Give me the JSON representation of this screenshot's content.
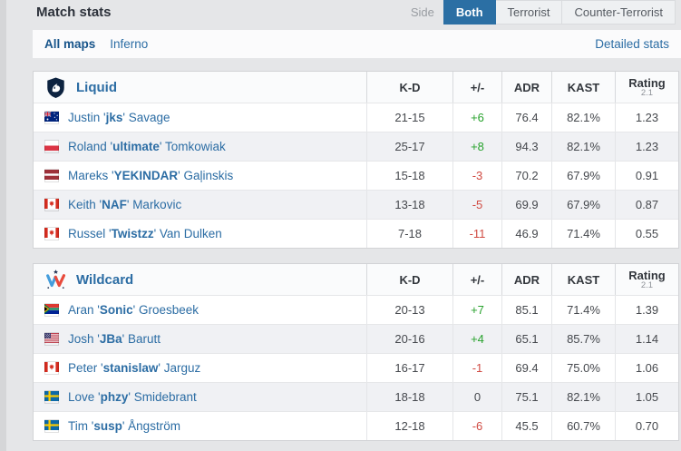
{
  "header": {
    "title": "Match stats",
    "side_label": "Side",
    "side_tabs": [
      {
        "label": "Both",
        "active": true
      },
      {
        "label": "Terrorist",
        "active": false
      },
      {
        "label": "Counter-Terrorist",
        "active": false
      }
    ],
    "maps_tabs": [
      {
        "label": "All maps",
        "active": true
      },
      {
        "label": "Inferno",
        "active": false
      }
    ],
    "detailed_stats_label": "Detailed stats"
  },
  "columns": [
    "K-D",
    "+/-",
    "ADR",
    "KAST",
    "Rating"
  ],
  "rating_sub": "2.1",
  "colors": {
    "accent_blue": "#2b6fa4",
    "link_blue": "#2c6da4",
    "positive": "#28a22d",
    "negative": "#d04a42",
    "page_bg": "#e5e6e8",
    "row_alt_bg": "#f0f1f4"
  },
  "teams": [
    {
      "name": "Liquid",
      "logo": "team-liquid-logo",
      "players": [
        {
          "flag": "australia",
          "first": "Justin",
          "nick": "jks",
          "last": "Savage",
          "kd": "21-15",
          "diff": "+6",
          "adr": "76.4",
          "kast": "82.1%",
          "rating": "1.23"
        },
        {
          "flag": "poland",
          "first": "Roland",
          "nick": "ultimate",
          "last": "Tomkowiak",
          "kd": "25-17",
          "diff": "+8",
          "adr": "94.3",
          "kast": "82.1%",
          "rating": "1.23"
        },
        {
          "flag": "latvia",
          "first": "Mareks",
          "nick": "YEKINDAR",
          "last": "Gaļinskis",
          "kd": "15-18",
          "diff": "-3",
          "adr": "70.2",
          "kast": "67.9%",
          "rating": "0.91"
        },
        {
          "flag": "canada",
          "first": "Keith",
          "nick": "NAF",
          "last": "Markovic",
          "kd": "13-18",
          "diff": "-5",
          "adr": "69.9",
          "kast": "67.9%",
          "rating": "0.87"
        },
        {
          "flag": "canada",
          "first": "Russel",
          "nick": "Twistzz",
          "last": "Van Dulken",
          "kd": "7-18",
          "diff": "-11",
          "adr": "46.9",
          "kast": "71.4%",
          "rating": "0.55"
        }
      ]
    },
    {
      "name": "Wildcard",
      "logo": "team-wildcard-logo",
      "players": [
        {
          "flag": "south-africa",
          "first": "Aran",
          "nick": "Sonic",
          "last": "Groesbeek",
          "kd": "20-13",
          "diff": "+7",
          "adr": "85.1",
          "kast": "71.4%",
          "rating": "1.39"
        },
        {
          "flag": "usa",
          "first": "Josh",
          "nick": "JBa",
          "last": "Barutt",
          "kd": "20-16",
          "diff": "+4",
          "adr": "65.1",
          "kast": "85.7%",
          "rating": "1.14"
        },
        {
          "flag": "canada",
          "first": "Peter",
          "nick": "stanislaw",
          "last": "Jarguz",
          "kd": "16-17",
          "diff": "-1",
          "adr": "69.4",
          "kast": "75.0%",
          "rating": "1.06"
        },
        {
          "flag": "sweden",
          "first": "Love",
          "nick": "phzy",
          "last": "Smidebrant",
          "kd": "18-18",
          "diff": "0",
          "adr": "75.1",
          "kast": "82.1%",
          "rating": "1.05"
        },
        {
          "flag": "sweden",
          "first": "Tim",
          "nick": "susp",
          "last": "Ångström",
          "kd": "12-18",
          "diff": "-6",
          "adr": "45.5",
          "kast": "60.7%",
          "rating": "0.70"
        }
      ]
    }
  ]
}
